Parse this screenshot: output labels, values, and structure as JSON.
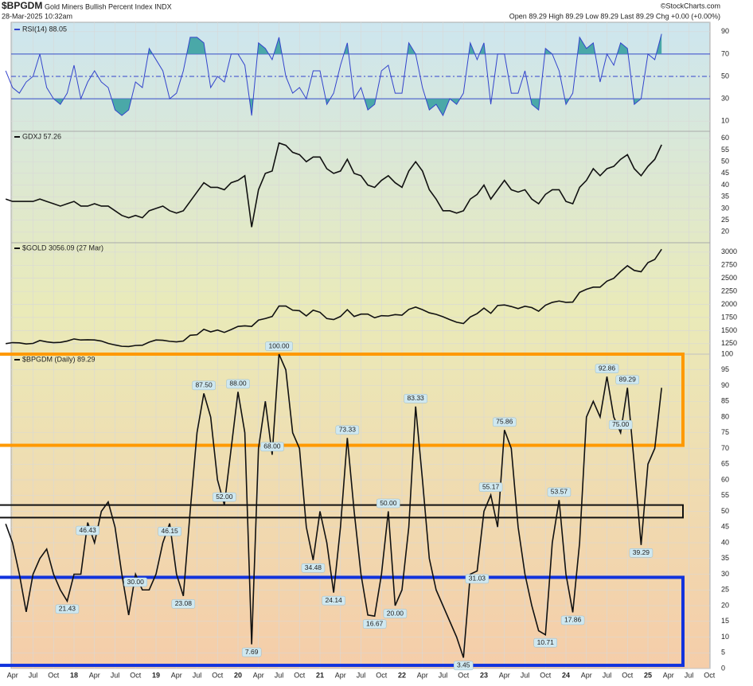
{
  "header": {
    "symbol": "$BPGDM",
    "name": "Gold Miners Bullish Percent Index INDX",
    "date": "28-Mar-2025 10:32am",
    "quote": "Open 89.29 High 89.29 Low 89.29 Last 89.29 Chg +0.00 (+0.00%)",
    "source": "©StockCharts.com"
  },
  "chart_data": {
    "type": "line",
    "grid": true,
    "x": [
      "2017-03",
      "2017-04",
      "2017-05",
      "2017-06",
      "2017-07",
      "2017-08",
      "2017-09",
      "2017-10",
      "2017-11",
      "2017-12",
      "2018-01",
      "2018-02",
      "2018-03",
      "2018-04",
      "2018-05",
      "2018-06",
      "2018-07",
      "2018-08",
      "2018-09",
      "2018-10",
      "2018-11",
      "2018-12",
      "2019-01",
      "2019-02",
      "2019-03",
      "2019-04",
      "2019-05",
      "2019-06",
      "2019-07",
      "2019-08",
      "2019-09",
      "2019-10",
      "2019-11",
      "2019-12",
      "2020-01",
      "2020-02",
      "2020-03",
      "2020-04",
      "2020-05",
      "2020-06",
      "2020-07",
      "2020-08",
      "2020-09",
      "2020-10",
      "2020-11",
      "2020-12",
      "2021-01",
      "2021-02",
      "2021-03",
      "2021-04",
      "2021-05",
      "2021-06",
      "2021-07",
      "2021-08",
      "2021-09",
      "2021-10",
      "2021-11",
      "2021-12",
      "2022-01",
      "2022-02",
      "2022-03",
      "2022-04",
      "2022-05",
      "2022-06",
      "2022-07",
      "2022-08",
      "2022-09",
      "2022-10",
      "2022-11",
      "2022-12",
      "2023-01",
      "2023-02",
      "2023-03",
      "2023-04",
      "2023-05",
      "2023-06",
      "2023-07",
      "2023-08",
      "2023-09",
      "2023-10",
      "2023-11",
      "2023-12",
      "2024-01",
      "2024-02",
      "2024-03",
      "2024-04",
      "2024-05",
      "2024-06",
      "2024-07",
      "2024-08",
      "2024-09",
      "2024-10",
      "2024-11",
      "2024-12",
      "2025-01",
      "2025-02",
      "2025-03"
    ],
    "xticks": [
      {
        "value": "2017-04",
        "label": "Apr"
      },
      {
        "value": "2017-07",
        "label": "Jul"
      },
      {
        "value": "2017-10",
        "label": "Oct"
      },
      {
        "value": "2018-01",
        "label": "18"
      },
      {
        "value": "2018-04",
        "label": "Apr"
      },
      {
        "value": "2018-07",
        "label": "Jul"
      },
      {
        "value": "2018-10",
        "label": "Oct"
      },
      {
        "value": "2019-01",
        "label": "19"
      },
      {
        "value": "2019-04",
        "label": "Apr"
      },
      {
        "value": "2019-07",
        "label": "Jul"
      },
      {
        "value": "2019-10",
        "label": "Oct"
      },
      {
        "value": "2020-01",
        "label": "20"
      },
      {
        "value": "2020-04",
        "label": "Apr"
      },
      {
        "value": "2020-07",
        "label": "Jul"
      },
      {
        "value": "2020-10",
        "label": "Oct"
      },
      {
        "value": "2021-01",
        "label": "21"
      },
      {
        "value": "2021-04",
        "label": "Apr"
      },
      {
        "value": "2021-07",
        "label": "Jul"
      },
      {
        "value": "2021-10",
        "label": "Oct"
      },
      {
        "value": "2022-01",
        "label": "22"
      },
      {
        "value": "2022-04",
        "label": "Apr"
      },
      {
        "value": "2022-07",
        "label": "Jul"
      },
      {
        "value": "2022-10",
        "label": "Oct"
      },
      {
        "value": "2023-01",
        "label": "23"
      },
      {
        "value": "2023-04",
        "label": "Apr"
      },
      {
        "value": "2023-07",
        "label": "Jul"
      },
      {
        "value": "2023-10",
        "label": "Oct"
      },
      {
        "value": "2024-01",
        "label": "24"
      },
      {
        "value": "2024-04",
        "label": "Apr"
      },
      {
        "value": "2024-07",
        "label": "Jul"
      },
      {
        "value": "2024-10",
        "label": "Oct"
      },
      {
        "value": "2025-01",
        "label": "25"
      },
      {
        "value": "2025-04",
        "label": "Apr"
      },
      {
        "value": "2025-07",
        "label": "Jul"
      },
      {
        "value": "2025-10",
        "label": "Oct"
      }
    ],
    "panels": [
      {
        "ylim": [
          3,
          97
        ],
        "yticks": [
          10,
          30,
          50,
          70,
          90
        ],
        "reference_lines": [
          30,
          50,
          70
        ],
        "reference_color": "#3344cc",
        "fill_color": "#4aa8a8",
        "series": [
          {
            "name": "RSI(14) 88.05",
            "color": "#3344cc",
            "values": [
              55,
              40,
              35,
              45,
              50,
              70,
              40,
              30,
              25,
              35,
              60,
              30,
              45,
              55,
              45,
              40,
              20,
              15,
              20,
              45,
              40,
              75,
              65,
              55,
              30,
              35,
              55,
              85,
              85,
              80,
              40,
              50,
              45,
              70,
              70,
              60,
              15,
              80,
              75,
              65,
              85,
              50,
              35,
              40,
              30,
              55,
              55,
              25,
              35,
              60,
              80,
              30,
              40,
              20,
              25,
              55,
              60,
              35,
              35,
              80,
              70,
              40,
              20,
              25,
              15,
              30,
              25,
              35,
              80,
              65,
              80,
              25,
              70,
              70,
              35,
              35,
              55,
              25,
              20,
              75,
              70,
              55,
              25,
              35,
              85,
              75,
              80,
              45,
              70,
              60,
              80,
              75,
              25,
              30,
              70,
              65,
              88.05
            ]
          }
        ]
      },
      {
        "ylim": [
          16,
          63
        ],
        "yticks": [
          20,
          25,
          30,
          35,
          40,
          45,
          50,
          55,
          60
        ],
        "series": [
          {
            "name": "GDXJ 57.26",
            "color": "#111111",
            "values": [
              34,
              33,
              33,
              33,
              33,
              34,
              33,
              32,
              31,
              32,
              33,
              31,
              31,
              32,
              31,
              31,
              29,
              27,
              26,
              27,
              26,
              29,
              30,
              31,
              29,
              28,
              29,
              33,
              37,
              41,
              39,
              39,
              38,
              41,
              42,
              44,
              22,
              38,
              45,
              46,
              58,
              57,
              54,
              53,
              50,
              52,
              52,
              47,
              45,
              46,
              51,
              45,
              44,
              40,
              39,
              42,
              44,
              41,
              39,
              46,
              50,
              46,
              38,
              34,
              29,
              29,
              28,
              29,
              34,
              36,
              40,
              34,
              38,
              42,
              38,
              37,
              38,
              34,
              32,
              36,
              38,
              38,
              33,
              32,
              39,
              42,
              47,
              44,
              47,
              48,
              51,
              53,
              47,
              44,
              48,
              51,
              57.26
            ]
          }
        ]
      },
      {
        "ylim": [
          1080,
          3180
        ],
        "yticks": [
          1250,
          1500,
          1750,
          2000,
          2250,
          2500,
          2750,
          3000
        ],
        "series": [
          {
            "name": "$GOLD 3056.09 (27 Mar)",
            "color": "#111111",
            "values": [
              1250,
              1270,
              1265,
              1245,
              1255,
              1310,
              1285,
              1270,
              1275,
              1300,
              1340,
              1320,
              1325,
              1320,
              1300,
              1255,
              1225,
              1200,
              1195,
              1215,
              1220,
              1280,
              1320,
              1315,
              1295,
              1285,
              1300,
              1410,
              1420,
              1525,
              1475,
              1510,
              1465,
              1520,
              1580,
              1590,
              1580,
              1700,
              1730,
              1770,
              1970,
              1970,
              1890,
              1880,
              1780,
              1890,
              1850,
              1730,
              1710,
              1770,
              1900,
              1770,
              1815,
              1815,
              1745,
              1785,
              1780,
              1805,
              1795,
              1905,
              1950,
              1900,
              1840,
              1810,
              1765,
              1710,
              1660,
              1635,
              1760,
              1825,
              1930,
              1830,
              1980,
              1990,
              1960,
              1920,
              1965,
              1940,
              1870,
              1985,
              2040,
              2065,
              2040,
              2045,
              2230,
              2290,
              2330,
              2330,
              2445,
              2500,
              2630,
              2740,
              2650,
              2625,
              2800,
              2860,
              3056.09
            ]
          }
        ]
      },
      {
        "ylim": [
          0,
          100
        ],
        "yticks": [
          0,
          5,
          10,
          15,
          20,
          25,
          30,
          35,
          40,
          45,
          50,
          55,
          60,
          65,
          70,
          75,
          80,
          85,
          90,
          95,
          100
        ],
        "series": [
          {
            "name": "$BPGDM (Daily) 89.29",
            "color": "#111111",
            "values": [
              46,
              40,
              30,
              18,
              30,
              35,
              38,
              30,
              25,
              21.43,
              30,
              30,
              46.43,
              40,
              50,
              53,
              45,
              30,
              17,
              30,
              25,
              25,
              30,
              40,
              46.15,
              30,
              23.08,
              50,
              75,
              87.5,
              80,
              60,
              52,
              70,
              88,
              75,
              7.69,
              70,
              85,
              68,
              100,
              95,
              75,
              70,
              45,
              34.48,
              50,
              40,
              24.14,
              45,
              73.33,
              50,
              30,
              17,
              16.67,
              30,
              50,
              20,
              25,
              45,
              83.33,
              60,
              35,
              25,
              20,
              15,
              10,
              3.45,
              30,
              31.03,
              50,
              55.17,
              45,
              75.86,
              70,
              45,
              30,
              20,
              12,
              10.71,
              40,
              53.57,
              30,
              17.86,
              40,
              80,
              85,
              80,
              92.86,
              80,
              75,
              89.29,
              65,
              39.29,
              65,
              70,
              89.29
            ]
          }
        ],
        "annotations": [
          {
            "x": "2017-12",
            "value": 21.43,
            "label": "21.43"
          },
          {
            "x": "2018-03",
            "value": 46.43,
            "label": "46.43"
          },
          {
            "x": "2018-10",
            "value": 30,
            "label": "30.00"
          },
          {
            "x": "2019-03",
            "value": 46.15,
            "label": "46.15"
          },
          {
            "x": "2019-05",
            "value": 23.08,
            "label": "23.08"
          },
          {
            "x": "2019-08",
            "value": 87.5,
            "label": "87.50"
          },
          {
            "x": "2019-11",
            "value": 52,
            "label": "52.00"
          },
          {
            "x": "2020-01",
            "value": 88,
            "label": "88.00"
          },
          {
            "x": "2020-03",
            "value": 7.69,
            "label": "7.69"
          },
          {
            "x": "2020-06",
            "value": 68,
            "label": "68.00"
          },
          {
            "x": "2020-07",
            "value": 100,
            "label": "100.00"
          },
          {
            "x": "2020-12",
            "value": 34.48,
            "label": "34.48"
          },
          {
            "x": "2021-03",
            "value": 24.14,
            "label": "24.14"
          },
          {
            "x": "2021-05",
            "value": 73.33,
            "label": "73.33"
          },
          {
            "x": "2021-09",
            "value": 16.67,
            "label": "16.67"
          },
          {
            "x": "2021-11",
            "value": 50,
            "label": "50.00"
          },
          {
            "x": "2021-12",
            "value": 20,
            "label": "20.00"
          },
          {
            "x": "2022-03",
            "value": 83.33,
            "label": "83.33"
          },
          {
            "x": "2022-10",
            "value": 3.45,
            "label": "3.45"
          },
          {
            "x": "2022-12",
            "value": 31.03,
            "label": "31.03"
          },
          {
            "x": "2023-02",
            "value": 55.17,
            "label": "55.17"
          },
          {
            "x": "2023-04",
            "value": 75.86,
            "label": "75.86"
          },
          {
            "x": "2023-10",
            "value": 10.71,
            "label": "10.71"
          },
          {
            "x": "2023-12",
            "value": 53.57,
            "label": "53.57"
          },
          {
            "x": "2024-02",
            "value": 17.86,
            "label": "17.86"
          },
          {
            "x": "2024-07",
            "value": 92.86,
            "label": "92.86"
          },
          {
            "x": "2024-09",
            "value": 75,
            "label": "75.00"
          },
          {
            "x": "2024-10",
            "value": 89.29,
            "label": "89.29"
          },
          {
            "x": "2024-12",
            "value": 39.29,
            "label": "39.29"
          }
        ],
        "zones": [
          {
            "from": 71,
            "to": 100,
            "color": "#ff9900"
          },
          {
            "from": 48,
            "to": 52,
            "color": "#111111"
          },
          {
            "from": 1,
            "to": 29,
            "color": "#1133dd"
          }
        ]
      }
    ]
  }
}
